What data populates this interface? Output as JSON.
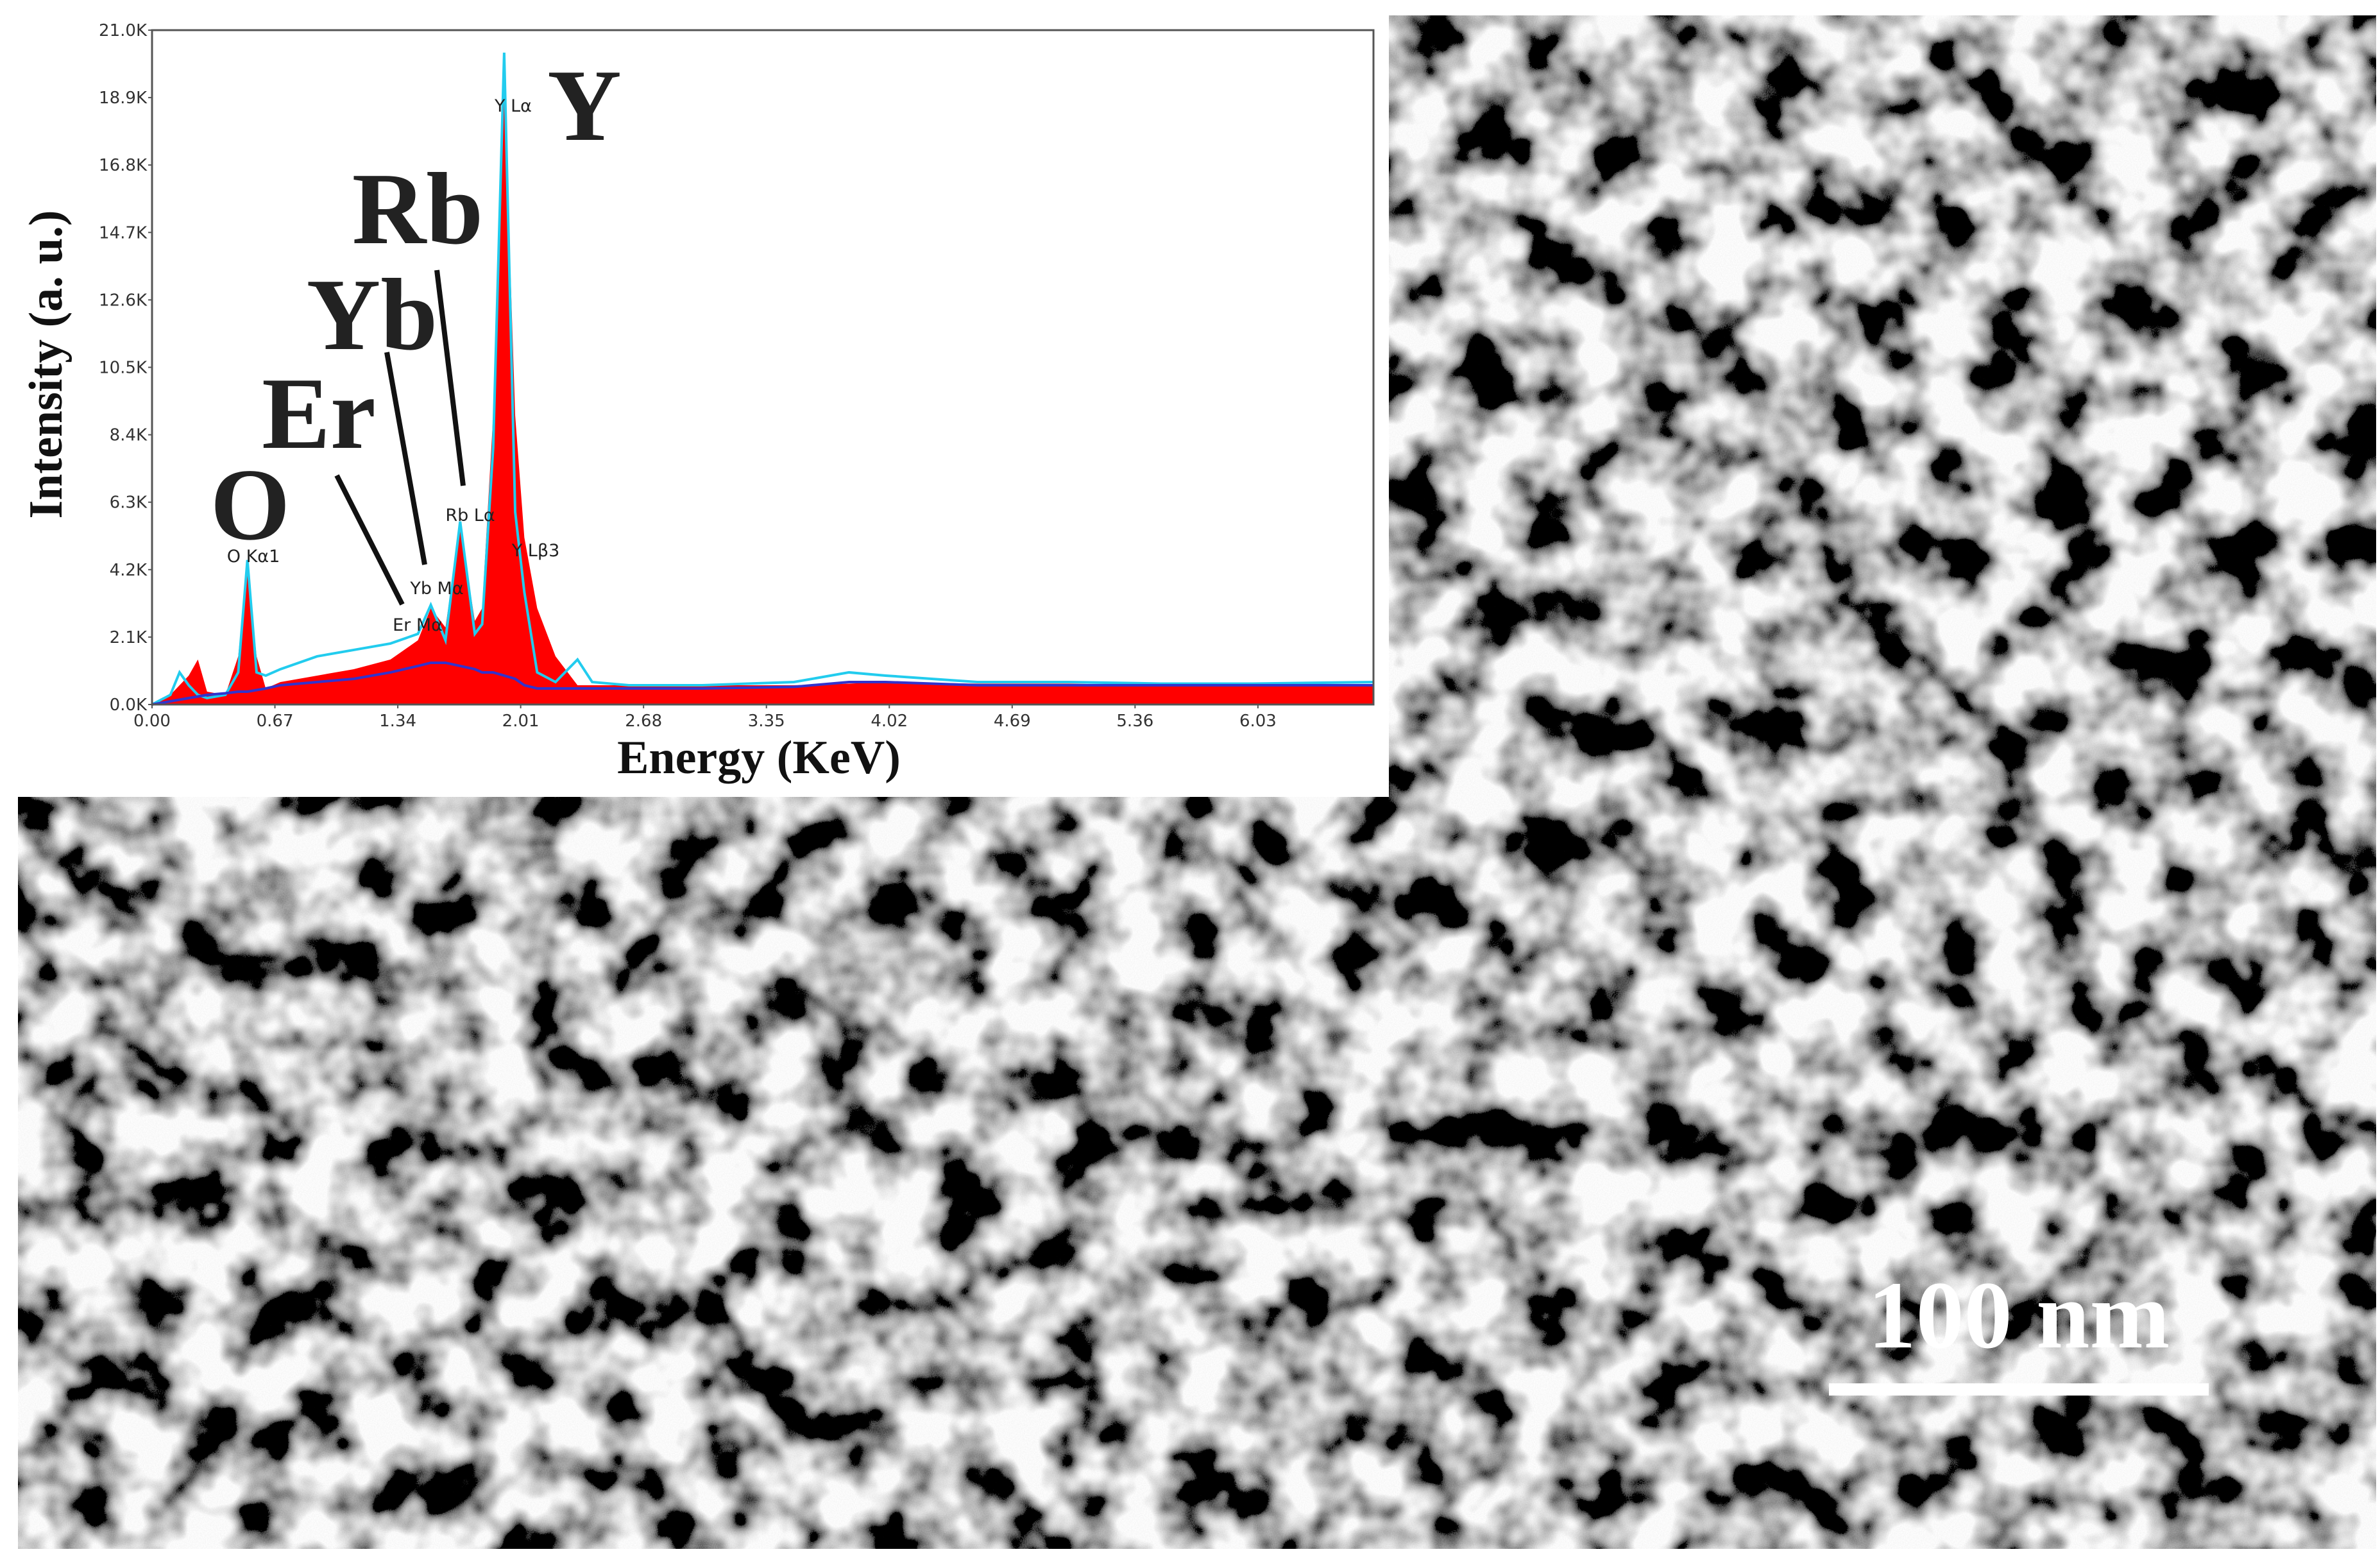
{
  "chart_data": {
    "type": "area",
    "x_label": "Energy (KeV)",
    "y_label": "Intensity (a. u.)",
    "x": [
      0,
      0.1,
      0.15,
      0.2,
      0.25,
      0.3,
      0.4,
      0.47,
      0.52,
      0.57,
      0.62,
      0.7,
      0.9,
      1.1,
      1.3,
      1.45,
      1.52,
      1.6,
      1.68,
      1.76,
      1.8,
      1.86,
      1.92,
      1.98,
      2.03,
      2.1,
      2.2,
      2.32,
      2.4,
      2.6,
      3.0,
      3.5,
      3.8,
      4.0,
      4.5,
      5.0,
      5.5,
      6.0,
      6.66
    ],
    "series": [
      {
        "color": "#ff0000",
        "fill": true,
        "values": [
          0,
          300,
          600,
          900,
          1400,
          400,
          300,
          1500,
          4400,
          1500,
          500,
          700,
          900,
          1100,
          1400,
          2000,
          3000,
          2400,
          5600,
          2600,
          3000,
          9000,
          19500,
          9000,
          5200,
          3000,
          1500,
          600,
          600,
          600,
          600,
          600,
          650,
          700,
          650,
          650,
          600,
          600,
          600
        ]
      },
      {
        "color": "#22ccee",
        "fill": false,
        "values": [
          0,
          300,
          1000,
          600,
          300,
          200,
          300,
          1000,
          4500,
          1000,
          900,
          1100,
          1500,
          1700,
          1900,
          2200,
          3100,
          2000,
          5700,
          2200,
          2500,
          8000,
          20300,
          6000,
          3500,
          1000,
          700,
          1400,
          700,
          600,
          600,
          700,
          1000,
          900,
          700,
          700,
          650,
          650,
          700
        ]
      },
      {
        "color": "#3333cc",
        "fill": false,
        "values": [
          0,
          100,
          150,
          200,
          250,
          300,
          350,
          400,
          400,
          450,
          500,
          600,
          700,
          800,
          1000,
          1200,
          1300,
          1300,
          1200,
          1100,
          1000,
          1000,
          900,
          800,
          600,
          500,
          500,
          500,
          500,
          500,
          500,
          550,
          700,
          700,
          600,
          600,
          600,
          600,
          600
        ]
      }
    ],
    "xlim": [
      0,
      6.66
    ],
    "xticks": [
      {
        "value": 0,
        "label": "0.00"
      },
      0.67,
      1.34,
      2.01,
      2.68,
      3.35,
      4.02,
      4.69,
      5.36,
      6.03
    ],
    "ylim": [
      0,
      21000
    ],
    "yticks": [
      {
        "value": 0,
        "label": "0.0K"
      },
      {
        "value": 2100,
        "label": "2.1K"
      },
      {
        "value": 4200,
        "label": "4.2K"
      },
      {
        "value": 6300,
        "label": "6.3K"
      },
      {
        "value": 8400,
        "label": "8.4K"
      },
      {
        "value": 10500,
        "label": "10.5K"
      },
      {
        "value": 12600,
        "label": "12.6K"
      },
      {
        "value": 14700,
        "label": "14.7K"
      },
      {
        "value": 16800,
        "label": "16.8K"
      },
      {
        "value": 18900,
        "label": "18.9K"
      },
      {
        "value": 21000,
        "label": "21.0K"
      }
    ],
    "peak_labels": [
      "O  Kα1",
      "Er Mα",
      "Yb Mα",
      "Rb Lα",
      "Y  Lα",
      "Y  Lβ3"
    ],
    "element_labels": [
      "O",
      "Er",
      "Yb",
      "Rb",
      "Y"
    ]
  },
  "scale_bar_label": "100 nm"
}
